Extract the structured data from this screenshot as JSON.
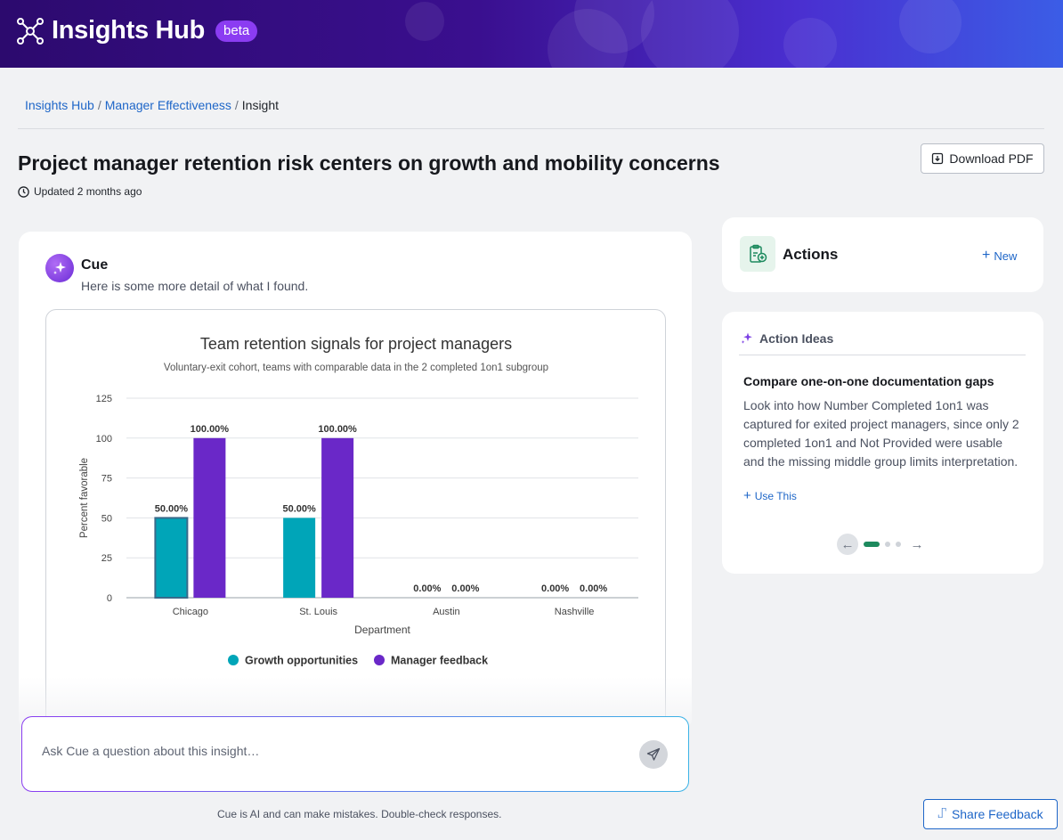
{
  "header": {
    "title": "Insights Hub",
    "badge": "beta",
    "icon": "network-nodes-icon"
  },
  "breadcrumb": {
    "items": [
      "Insights Hub",
      "Manager Effectiveness",
      "Insight"
    ],
    "separator": "/"
  },
  "page": {
    "title": "Project manager retention risk centers on growth and mobility concerns",
    "updated": "Updated 2 months ago",
    "download_label": "Download PDF"
  },
  "cue": {
    "name": "Cue",
    "subtitle": "Here is some more detail of what I found."
  },
  "chart_data": {
    "type": "bar",
    "title": "Team retention signals for project managers",
    "subtitle": "Voluntary-exit cohort, teams with comparable data in the 2 completed 1on1 subgroup",
    "xlabel": "Department",
    "ylabel": "Percent favorable",
    "ylim": [
      0,
      125
    ],
    "yticks": [
      0,
      25,
      50,
      75,
      100,
      125
    ],
    "categories": [
      "Chicago",
      "St. Louis",
      "Austin",
      "Nashville"
    ],
    "series": [
      {
        "name": "Growth opportunities",
        "values": [
          50,
          50,
          0,
          0
        ],
        "labels": [
          "50.00%",
          "50.00%",
          "0.00%",
          "0.00%"
        ],
        "color": "#00a5b8"
      },
      {
        "name": "Manager feedback",
        "values": [
          100,
          100,
          0,
          0
        ],
        "labels": [
          "100.00%",
          "100.00%",
          "0.00%",
          "0.00%"
        ],
        "color": "#6a28c8"
      }
    ],
    "grid": true,
    "legend": "bottom"
  },
  "chat": {
    "placeholder": "Ask Cue a question about this insight…",
    "disclaimer": "Cue is AI and can make mistakes. Double-check responses."
  },
  "actions": {
    "title": "Actions",
    "new_label": "New"
  },
  "ideas": {
    "heading": "Action Ideas",
    "item_title": "Compare one-on-one documentation gaps",
    "item_body": "Look into how Number Completed 1on1 was captured for exited project managers, since only 2 completed 1on1 and Not Provided were usable and the missing middle group limits interpretation.",
    "use_label": "Use This",
    "page_index": 1,
    "page_count": 3
  },
  "feedback": {
    "label": "Share Feedback"
  },
  "colors": {
    "accent_blue": "#1e66c8",
    "teal": "#00a5b8",
    "purple": "#6a28c8",
    "green": "#1d8a5e"
  }
}
